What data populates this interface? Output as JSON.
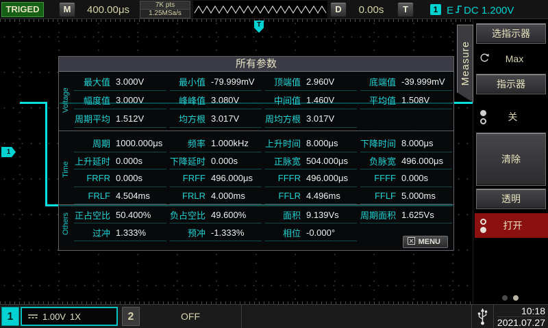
{
  "top_bar": {
    "trigger_status": "TRIGED",
    "horizontal_button": "M",
    "timebase": "400.00μs",
    "memory_depth": "7K pts",
    "sample_rate": "1.25MSa/s",
    "delay_button": "D",
    "delay_value": "0.00s",
    "trigger_button": "T",
    "trigger_source_badge": "1",
    "trigger_edge_prefix": "E",
    "trigger_coupling_level": "DC 1.200V"
  },
  "markers": {
    "channel_marker": "1",
    "trigger_marker": "T"
  },
  "dialog": {
    "title": "所有参数",
    "menu_button": "MENU",
    "sections": [
      {
        "label": "Voltage",
        "rows": [
          [
            {
              "l": "最大值",
              "v": "3.000V"
            },
            {
              "l": "最小值",
              "v": "-79.999mV"
            },
            {
              "l": "顶端值",
              "v": "2.960V"
            },
            {
              "l": "底端值",
              "v": "-39.999mV"
            }
          ],
          [
            {
              "l": "幅度值",
              "v": "3.000V"
            },
            {
              "l": "峰峰值",
              "v": "3.080V"
            },
            {
              "l": "中间值",
              "v": "1.460V"
            },
            {
              "l": "平均值",
              "v": "1.508V"
            }
          ],
          [
            {
              "l": "周期平均",
              "v": "1.512V"
            },
            {
              "l": "均方根",
              "v": "3.017V"
            },
            {
              "l": "周均方根",
              "v": "3.017V"
            },
            {
              "l": "",
              "v": ""
            }
          ]
        ]
      },
      {
        "label": "Time",
        "rows": [
          [
            {
              "l": "周期",
              "v": "1000.000μs"
            },
            {
              "l": "频率",
              "v": "1.000kHz"
            },
            {
              "l": "上升时间",
              "v": "8.000μs"
            },
            {
              "l": "下降时间",
              "v": "8.000μs"
            }
          ],
          [
            {
              "l": "上升延时",
              "v": "0.000s"
            },
            {
              "l": "下降延时",
              "v": "0.000s"
            },
            {
              "l": "正脉宽",
              "v": "504.000μs"
            },
            {
              "l": "负脉宽",
              "v": "496.000μs"
            }
          ],
          [
            {
              "l": "FRFR",
              "v": "0.000s"
            },
            {
              "l": "FRFF",
              "v": "496.000μs"
            },
            {
              "l": "FFFR",
              "v": "496.000μs"
            },
            {
              "l": "FFFF",
              "v": "0.000s"
            }
          ],
          [
            {
              "l": "FRLF",
              "v": "4.504ms"
            },
            {
              "l": "FRLR",
              "v": "4.000ms"
            },
            {
              "l": "FFLR",
              "v": "4.496ms"
            },
            {
              "l": "FFLF",
              "v": "5.000ms"
            }
          ]
        ]
      },
      {
        "label": "Others",
        "rows": [
          [
            {
              "l": "正占空比",
              "v": "50.400%"
            },
            {
              "l": "负占空比",
              "v": "49.600%"
            },
            {
              "l": "面积",
              "v": "9.139Vs"
            },
            {
              "l": "周期面积",
              "v": "1.625Vs"
            }
          ],
          [
            {
              "l": "过冲",
              "v": "1.333%"
            },
            {
              "l": "预冲",
              "v": "-1.333%"
            },
            {
              "l": "相位",
              "v": "-0.000°"
            },
            {
              "l": "",
              "v": ""
            }
          ]
        ]
      }
    ]
  },
  "sidebar": {
    "tab": "Measure",
    "select_indicator_button": "选指示器",
    "indicator_type_value": "Max",
    "indicator_button": "指示器",
    "indicator_state_value": "关",
    "clear_button": "清除",
    "transparent_button": "透明",
    "display_state_value": "打开"
  },
  "bottom_bar": {
    "ch1_badge": "1",
    "ch1_scale": "1.00V",
    "ch1_probe": "1X",
    "ch2_badge": "2",
    "ch2_status": "OFF",
    "time": "10:18",
    "date": "2021.07.27"
  },
  "colors": {
    "accent": "#00d2d2",
    "cream": "#d6d2a6",
    "trig_green": "#156015",
    "open_red": "#8b1111"
  }
}
